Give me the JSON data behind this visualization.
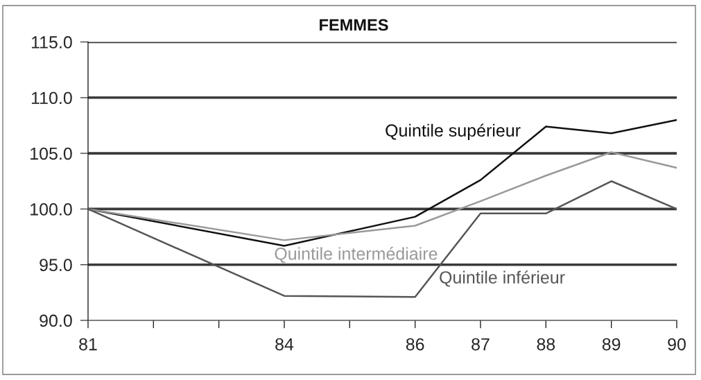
{
  "chart_data": {
    "type": "line",
    "title": "FEMMES",
    "categories": [
      "81",
      null,
      null,
      "84",
      null,
      "86",
      "87",
      "88",
      "89",
      "90"
    ],
    "series": [
      {
        "name": "Quintile supérieur",
        "color": "#111111",
        "values": [
          100.0,
          null,
          null,
          96.7,
          null,
          99.3,
          102.6,
          107.4,
          106.8,
          108.0
        ]
      },
      {
        "name": "Quintile intermédiaire",
        "color": "#999999",
        "values": [
          100.0,
          null,
          null,
          97.2,
          null,
          98.5,
          100.7,
          103.0,
          105.1,
          103.7
        ]
      },
      {
        "name": "Quintile inférieur",
        "color": "#555555",
        "values": [
          100.0,
          null,
          null,
          92.2,
          null,
          92.1,
          99.6,
          99.6,
          102.5,
          100.0
        ]
      }
    ],
    "ylim": [
      90,
      115
    ],
    "yticks": [
      {
        "value": 90,
        "label": "90.0"
      },
      {
        "value": 95,
        "label": "95.0"
      },
      {
        "value": 100,
        "label": "100.0"
      },
      {
        "value": 105,
        "label": "105.0"
      },
      {
        "value": 110,
        "label": "110.0"
      },
      {
        "value": 115,
        "label": "115.0"
      }
    ],
    "grid": "y",
    "line_style": "solid"
  }
}
